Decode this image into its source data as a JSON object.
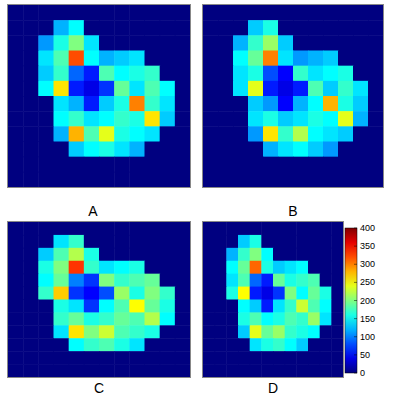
{
  "chart_data": {
    "type": "heatmap",
    "tick_labels": false,
    "panels": [
      {
        "name": "A",
        "cells": [
          [
            0,
            0,
            0,
            0,
            0,
            0,
            0,
            0,
            0,
            0,
            0,
            0
          ],
          [
            0,
            0,
            0,
            120,
            150,
            0,
            0,
            0,
            0,
            0,
            0,
            0
          ],
          [
            0,
            0,
            110,
            160,
            200,
            140,
            0,
            0,
            0,
            0,
            0,
            0
          ],
          [
            0,
            0,
            140,
            180,
            320,
            150,
            120,
            130,
            140,
            0,
            0,
            0
          ],
          [
            0,
            0,
            130,
            170,
            90,
            60,
            180,
            150,
            160,
            170,
            0,
            0
          ],
          [
            0,
            0,
            150,
            260,
            60,
            40,
            70,
            190,
            140,
            180,
            150,
            0
          ],
          [
            0,
            0,
            0,
            140,
            120,
            60,
            130,
            160,
            300,
            170,
            140,
            0
          ],
          [
            0,
            0,
            0,
            150,
            170,
            140,
            150,
            170,
            160,
            260,
            130,
            0
          ],
          [
            0,
            0,
            0,
            120,
            280,
            180,
            240,
            160,
            150,
            140,
            0,
            0
          ],
          [
            0,
            0,
            0,
            0,
            130,
            150,
            160,
            140,
            120,
            0,
            0,
            0
          ],
          [
            0,
            0,
            0,
            0,
            0,
            0,
            0,
            0,
            0,
            0,
            0,
            0
          ],
          [
            0,
            0,
            0,
            0,
            0,
            0,
            0,
            0,
            0,
            0,
            0,
            0
          ]
        ]
      },
      {
        "name": "B",
        "cells": [
          [
            0,
            0,
            0,
            0,
            0,
            0,
            0,
            0,
            0,
            0,
            0,
            0
          ],
          [
            0,
            0,
            0,
            130,
            160,
            0,
            0,
            0,
            0,
            0,
            0,
            0
          ],
          [
            0,
            0,
            120,
            170,
            210,
            130,
            0,
            0,
            0,
            0,
            0,
            0
          ],
          [
            0,
            0,
            150,
            190,
            300,
            140,
            110,
            120,
            130,
            0,
            0,
            0
          ],
          [
            0,
            0,
            140,
            160,
            80,
            50,
            170,
            140,
            150,
            160,
            0,
            0
          ],
          [
            0,
            0,
            140,
            240,
            60,
            40,
            60,
            180,
            130,
            170,
            140,
            0
          ],
          [
            0,
            0,
            0,
            130,
            110,
            50,
            120,
            150,
            280,
            160,
            130,
            0
          ],
          [
            0,
            0,
            0,
            140,
            160,
            130,
            140,
            160,
            150,
            240,
            120,
            0
          ],
          [
            0,
            0,
            0,
            110,
            260,
            170,
            220,
            150,
            140,
            130,
            0,
            0
          ],
          [
            0,
            0,
            0,
            0,
            120,
            140,
            150,
            130,
            110,
            0,
            0,
            0
          ],
          [
            0,
            0,
            0,
            0,
            0,
            0,
            0,
            0,
            0,
            0,
            0,
            0
          ],
          [
            0,
            0,
            0,
            0,
            0,
            0,
            0,
            0,
            0,
            0,
            0,
            0
          ]
        ]
      },
      {
        "name": "C",
        "cells": [
          [
            0,
            0,
            0,
            0,
            0,
            0,
            0,
            0,
            0,
            0,
            0,
            0
          ],
          [
            0,
            0,
            0,
            140,
            170,
            0,
            0,
            0,
            0,
            0,
            0,
            0
          ],
          [
            0,
            0,
            130,
            180,
            220,
            160,
            0,
            0,
            0,
            0,
            0,
            0
          ],
          [
            0,
            0,
            160,
            200,
            330,
            170,
            140,
            150,
            160,
            0,
            0,
            0
          ],
          [
            0,
            0,
            150,
            190,
            100,
            70,
            200,
            170,
            180,
            190,
            0,
            0
          ],
          [
            0,
            0,
            170,
            270,
            70,
            50,
            80,
            210,
            160,
            200,
            170,
            0
          ],
          [
            0,
            0,
            0,
            160,
            140,
            70,
            150,
            180,
            250,
            190,
            160,
            0
          ],
          [
            0,
            0,
            0,
            170,
            190,
            160,
            170,
            190,
            180,
            220,
            150,
            0
          ],
          [
            0,
            0,
            0,
            140,
            260,
            200,
            230,
            180,
            170,
            160,
            0,
            0
          ],
          [
            0,
            0,
            0,
            0,
            150,
            170,
            180,
            160,
            140,
            0,
            0,
            0
          ],
          [
            0,
            0,
            0,
            0,
            0,
            0,
            0,
            0,
            0,
            0,
            0,
            0
          ],
          [
            0,
            0,
            0,
            0,
            0,
            0,
            0,
            0,
            0,
            0,
            0,
            0
          ]
        ]
      },
      {
        "name": "D",
        "cells": [
          [
            0,
            0,
            0,
            0,
            0,
            0,
            0,
            0,
            0,
            0,
            0,
            0
          ],
          [
            0,
            0,
            0,
            130,
            160,
            0,
            0,
            0,
            0,
            0,
            0,
            0
          ],
          [
            0,
            0,
            120,
            170,
            200,
            150,
            0,
            0,
            0,
            0,
            0,
            0
          ],
          [
            0,
            0,
            150,
            190,
            310,
            160,
            130,
            140,
            150,
            0,
            0,
            0
          ],
          [
            0,
            0,
            140,
            180,
            90,
            60,
            190,
            160,
            170,
            180,
            0,
            0
          ],
          [
            0,
            0,
            160,
            250,
            60,
            40,
            70,
            200,
            150,
            190,
            160,
            0
          ],
          [
            0,
            0,
            0,
            150,
            130,
            60,
            140,
            170,
            230,
            180,
            150,
            0
          ],
          [
            0,
            0,
            0,
            160,
            180,
            150,
            160,
            180,
            170,
            210,
            140,
            0
          ],
          [
            0,
            0,
            0,
            130,
            240,
            190,
            210,
            170,
            160,
            150,
            0,
            0
          ],
          [
            0,
            0,
            0,
            0,
            140,
            160,
            170,
            150,
            130,
            0,
            0,
            0
          ],
          [
            0,
            0,
            0,
            0,
            0,
            0,
            0,
            0,
            0,
            0,
            0,
            0
          ],
          [
            0,
            0,
            0,
            0,
            0,
            0,
            0,
            0,
            0,
            0,
            0,
            0
          ]
        ]
      }
    ],
    "colorbar": {
      "range": [
        0,
        400
      ],
      "ticks": [
        0,
        50,
        100,
        150,
        200,
        250,
        300,
        350,
        400
      ]
    }
  }
}
